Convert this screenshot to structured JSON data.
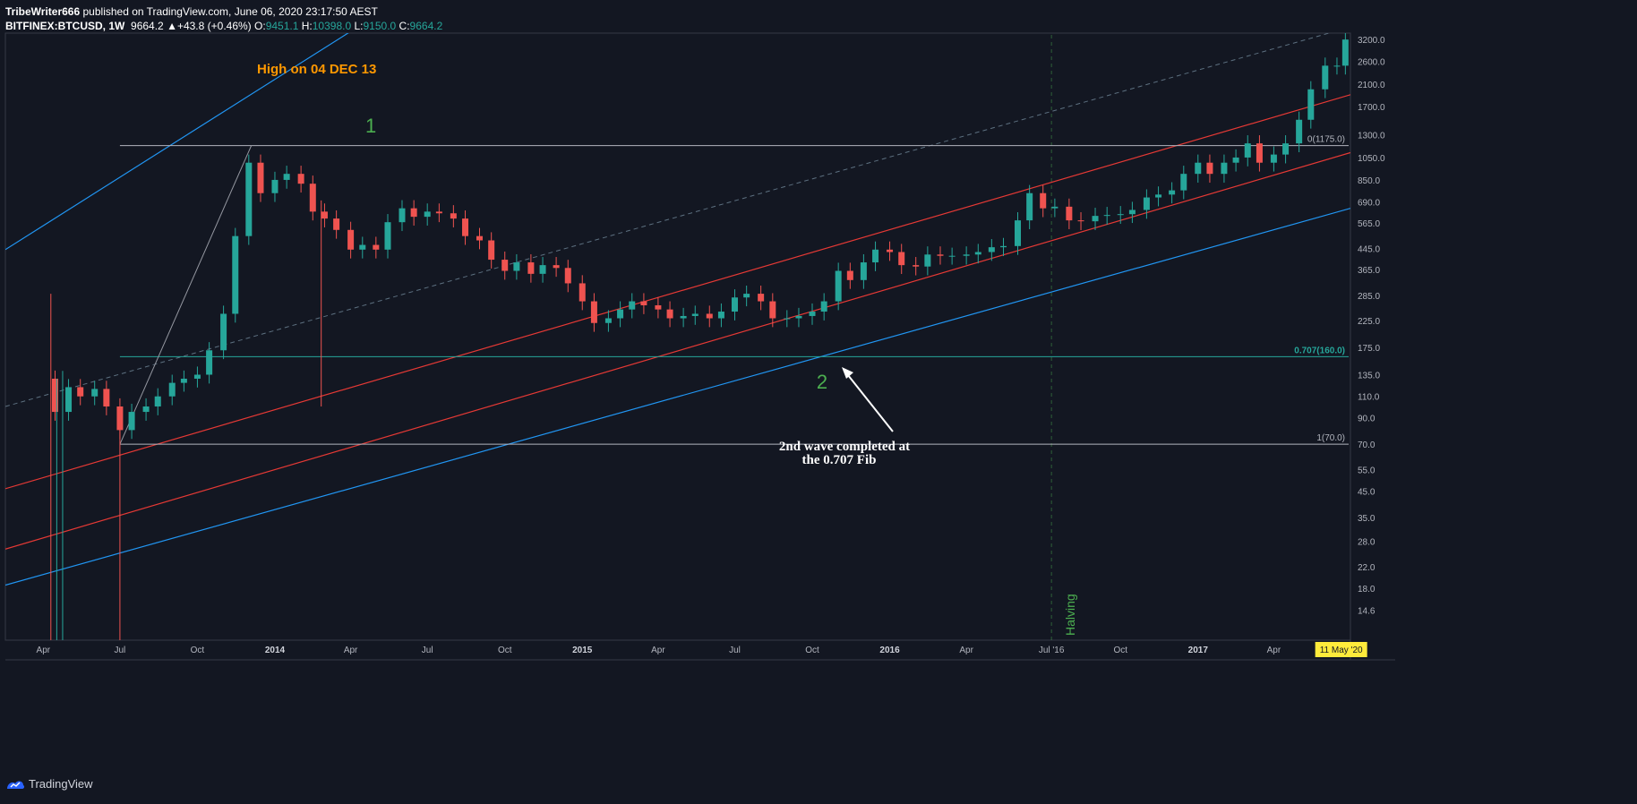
{
  "header": {
    "publisher": "TribeWriter666",
    "published_text": "published on TradingView.com, June 06, 2020 23:17:50 AEST",
    "symbol": "BITFINEX:BTCUSD, 1W",
    "last_price": "9664.2",
    "change": "+43.8 (+0.46%)",
    "o_label": "O:",
    "o_value": "9451.1",
    "h_label": "H:",
    "h_value": "10398.0",
    "l_label": "L:",
    "l_value": "9150.0",
    "c_label": "C:",
    "c_value": "9664.2"
  },
  "footer": {
    "brand": "TradingView"
  },
  "colors": {
    "background": "#131722",
    "up": "#26a69a",
    "down": "#ef5350",
    "blue_line": "#2196f3",
    "red_line": "#e53935",
    "annotation_orange": "#ff9800",
    "wave_green": "#4caf50",
    "fib_teal": "#26a69a",
    "highlight_yellow": "#ffeb3b"
  },
  "chart_data": {
    "type": "candlestick",
    "title": "",
    "y_scale": "log",
    "ylim": [
      11,
      3400
    ],
    "y_ticks": [
      "3200.0",
      "2600.0",
      "2100.0",
      "1700.0",
      "1300.0",
      "1050.0",
      "850.0",
      "690.0",
      "565.0",
      "445.0",
      "365.0",
      "285.0",
      "225.0",
      "175.0",
      "135.0",
      "110.0",
      "90.0",
      "70.0",
      "55.0",
      "45.0",
      "35.0",
      "28.0",
      "22.0",
      "18.0",
      "14.6"
    ],
    "x_ticks": [
      "Apr",
      "Jul",
      "Oct",
      "2014",
      "Apr",
      "Jul",
      "Oct",
      "2015",
      "Apr",
      "Jul",
      "Oct",
      "2016",
      "Apr",
      "Jul '16",
      "Oct",
      "2017",
      "Apr",
      "11 May '20"
    ],
    "x_tick_dates": [
      "2013-04-01",
      "2013-07-01",
      "2013-10-01",
      "2014-01-01",
      "2014-04-01",
      "2014-07-01",
      "2014-10-01",
      "2015-01-01",
      "2015-04-01",
      "2015-07-01",
      "2015-10-01",
      "2016-01-01",
      "2016-04-01",
      "2016-07-11",
      "2016-10-01",
      "2017-01-01",
      "2017-04-01",
      "2017-06-20"
    ],
    "xlim": [
      "2013-02-15",
      "2017-07-01"
    ],
    "price_path": [
      [
        "2013-04-01",
        130
      ],
      [
        "2013-04-15",
        95
      ],
      [
        "2013-05-01",
        120
      ],
      [
        "2013-05-15",
        110
      ],
      [
        "2013-06-01",
        118
      ],
      [
        "2013-06-15",
        100
      ],
      [
        "2013-07-01",
        80
      ],
      [
        "2013-07-15",
        95
      ],
      [
        "2013-08-01",
        100
      ],
      [
        "2013-08-15",
        110
      ],
      [
        "2013-09-01",
        125
      ],
      [
        "2013-09-15",
        130
      ],
      [
        "2013-10-01",
        135
      ],
      [
        "2013-10-15",
        170
      ],
      [
        "2013-11-01",
        240
      ],
      [
        "2013-11-15",
        500
      ],
      [
        "2013-12-01",
        1000
      ],
      [
        "2013-12-15",
        750
      ],
      [
        "2014-01-01",
        850
      ],
      [
        "2014-01-15",
        900
      ],
      [
        "2014-02-01",
        820
      ],
      [
        "2014-02-15",
        630
      ],
      [
        "2014-03-01",
        590
      ],
      [
        "2014-03-15",
        530
      ],
      [
        "2014-04-01",
        440
      ],
      [
        "2014-04-15",
        460
      ],
      [
        "2014-05-01",
        440
      ],
      [
        "2014-05-15",
        570
      ],
      [
        "2014-06-01",
        650
      ],
      [
        "2014-06-15",
        600
      ],
      [
        "2014-07-01",
        630
      ],
      [
        "2014-07-15",
        620
      ],
      [
        "2014-08-01",
        590
      ],
      [
        "2014-08-15",
        500
      ],
      [
        "2014-09-01",
        480
      ],
      [
        "2014-09-15",
        400
      ],
      [
        "2014-10-01",
        360
      ],
      [
        "2014-10-15",
        390
      ],
      [
        "2014-11-01",
        350
      ],
      [
        "2014-11-15",
        380
      ],
      [
        "2014-12-01",
        370
      ],
      [
        "2014-12-15",
        320
      ],
      [
        "2015-01-01",
        270
      ],
      [
        "2015-01-15",
        220
      ],
      [
        "2015-02-01",
        230
      ],
      [
        "2015-02-15",
        250
      ],
      [
        "2015-03-01",
        270
      ],
      [
        "2015-03-15",
        260
      ],
      [
        "2015-04-01",
        250
      ],
      [
        "2015-04-15",
        230
      ],
      [
        "2015-05-01",
        235
      ],
      [
        "2015-05-15",
        240
      ],
      [
        "2015-06-01",
        230
      ],
      [
        "2015-06-15",
        245
      ],
      [
        "2015-07-01",
        280
      ],
      [
        "2015-07-15",
        290
      ],
      [
        "2015-08-01",
        270
      ],
      [
        "2015-08-15",
        230
      ],
      [
        "2015-09-01",
        230
      ],
      [
        "2015-09-15",
        235
      ],
      [
        "2015-10-01",
        245
      ],
      [
        "2015-10-15",
        270
      ],
      [
        "2015-11-01",
        360
      ],
      [
        "2015-11-15",
        330
      ],
      [
        "2015-12-01",
        390
      ],
      [
        "2015-12-15",
        440
      ],
      [
        "2016-01-01",
        430
      ],
      [
        "2016-01-15",
        380
      ],
      [
        "2016-02-01",
        375
      ],
      [
        "2016-02-15",
        420
      ],
      [
        "2016-03-01",
        415
      ],
      [
        "2016-03-15",
        415
      ],
      [
        "2016-04-01",
        420
      ],
      [
        "2016-04-15",
        430
      ],
      [
        "2016-05-01",
        450
      ],
      [
        "2016-05-15",
        455
      ],
      [
        "2016-06-01",
        580
      ],
      [
        "2016-06-15",
        750
      ],
      [
        "2016-07-01",
        650
      ],
      [
        "2016-07-15",
        660
      ],
      [
        "2016-08-01",
        580
      ],
      [
        "2016-08-15",
        575
      ],
      [
        "2016-09-01",
        605
      ],
      [
        "2016-09-15",
        610
      ],
      [
        "2016-10-01",
        615
      ],
      [
        "2016-10-15",
        640
      ],
      [
        "2016-11-01",
        720
      ],
      [
        "2016-11-15",
        740
      ],
      [
        "2016-12-01",
        770
      ],
      [
        "2016-12-15",
        900
      ],
      [
        "2017-01-01",
        1000
      ],
      [
        "2017-01-15",
        900
      ],
      [
        "2017-02-01",
        1000
      ],
      [
        "2017-02-15",
        1050
      ],
      [
        "2017-03-01",
        1200
      ],
      [
        "2017-03-15",
        1000
      ],
      [
        "2017-04-01",
        1080
      ],
      [
        "2017-04-15",
        1200
      ],
      [
        "2017-05-01",
        1500
      ],
      [
        "2017-05-15",
        2000
      ],
      [
        "2017-06-01",
        2500
      ],
      [
        "2017-06-15",
        2500
      ],
      [
        "2017-06-25",
        3200
      ]
    ],
    "fib_levels": [
      {
        "label": "0(1175.0)",
        "price": 1175.0
      },
      {
        "label": "0.707(160.0)",
        "price": 160.0
      },
      {
        "label": "1(70.0)",
        "price": 70.0
      }
    ],
    "annotations": [
      {
        "text": "High on 04 DEC 13"
      },
      {
        "text": "1"
      },
      {
        "text": "2"
      },
      {
        "text": "2nd wave completed at"
      },
      {
        "text": "the 0.707 Fib"
      },
      {
        "text": "Halving"
      }
    ],
    "highlight_date_label": "11 Jul '16",
    "last_date_label": "11 May '20",
    "grid": false
  }
}
